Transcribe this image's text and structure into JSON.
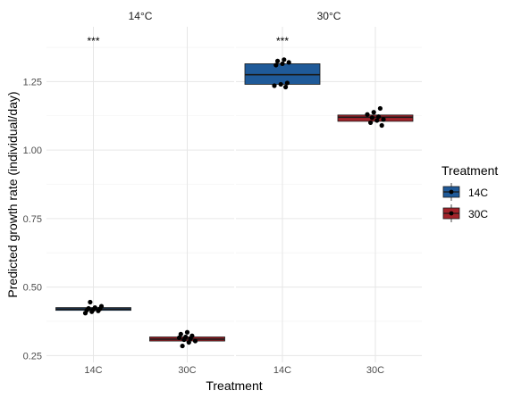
{
  "chart_data": {
    "type": "box",
    "xlabel": "Treatment",
    "ylabel": "Predicted growth rate (individual/day)",
    "ylim": [
      0.225,
      1.45
    ],
    "yticks": [
      "0.25",
      "0.50",
      "0.75",
      "1.00",
      "1.25"
    ],
    "ytick_values": [
      0.25,
      0.5,
      0.75,
      1.0,
      1.25
    ],
    "categories": [
      "14C",
      "30C"
    ],
    "grid": true,
    "legend": {
      "title": "Treatment",
      "position": "right",
      "entries": [
        {
          "label": "14C",
          "color": "#1f5a99"
        },
        {
          "label": "30C",
          "color": "#a3232a"
        }
      ]
    },
    "panels": [
      {
        "strip": "14°C",
        "annotation": "***",
        "boxes": [
          {
            "category": "14C",
            "color": "#1f5a99",
            "q1": 0.415,
            "median": 0.42,
            "q3": 0.425,
            "points": [
              0.405,
              0.41,
              0.413,
              0.416,
              0.418,
              0.42,
              0.422,
              0.425,
              0.43,
              0.445
            ]
          },
          {
            "category": "30C",
            "color": "#a3232a",
            "q1": 0.303,
            "median": 0.31,
            "q3": 0.318,
            "points": [
              0.285,
              0.298,
              0.303,
              0.308,
              0.312,
              0.315,
              0.318,
              0.322,
              0.328,
              0.335
            ]
          }
        ]
      },
      {
        "strip": "30°C",
        "annotation": "***",
        "boxes": [
          {
            "category": "14C",
            "color": "#1f5a99",
            "q1": 1.24,
            "median": 1.275,
            "q3": 1.315,
            "points": [
              1.23,
              1.235,
              1.24,
              1.245,
              1.31,
              1.315,
              1.32,
              1.325,
              1.33
            ]
          },
          {
            "category": "30C",
            "color": "#a3232a",
            "q1": 1.105,
            "median": 1.12,
            "q3": 1.128,
            "points": [
              1.09,
              1.1,
              1.108,
              1.112,
              1.118,
              1.122,
              1.13,
              1.138,
              1.152
            ]
          }
        ]
      }
    ]
  }
}
